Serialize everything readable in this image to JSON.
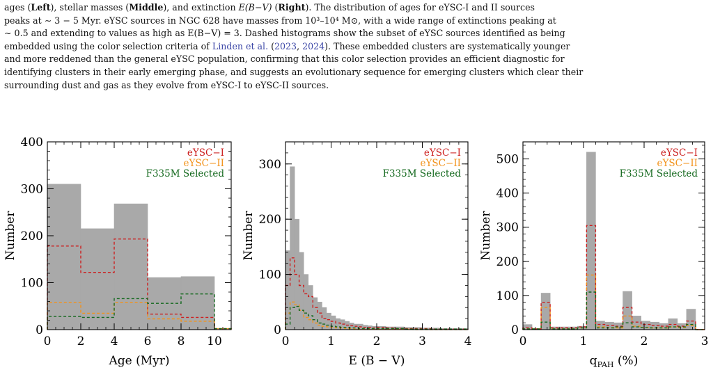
{
  "caption": {
    "line1": {
      "a": "ages (",
      "left": "Left",
      "b": "), stellar masses (",
      "middle": "Middle",
      "c": "), and extinction ",
      "ebv": "E(B−V)",
      "d": " (",
      "right": "Right",
      "e": "). The distribution of ages for eYSC-I and II sources"
    },
    "line2": "peaks at ∼ 3 − 5 Myr. eYSC sources in NGC 628 have masses from 10³–10⁴ M⊙, with a wide range of extinctions peaking at",
    "line3": "∼ 0.5 and extending to values as high as E(B−V) = 3. Dashed histograms show the subset of eYSC sources identified as being",
    "line4": {
      "a": "embedded using the color selection criteria of ",
      "cite_author": "Linden et al.",
      "b": " (",
      "cite_y1": "2023",
      "c": ", ",
      "cite_y2": "2024",
      "d": "). These embedded clusters are systematically younger"
    },
    "line5": "and more reddened than the general eYSC population, confirming that this color selection provides an efficient diagnostic for",
    "line6": "identifying clusters in their early emerging phase, and suggests an evolutionary sequence for emerging clusters which clear their",
    "line7": "surrounding dust and gas as they evolve from eYSC-I to eYSC-II sources."
  },
  "colors": {
    "all": "#a9a9a9",
    "eysc1": "#cc1f1f",
    "eysc2": "#f2921a",
    "f335m": "#14691e"
  },
  "chart_data": [
    {
      "type": "bar",
      "panel": "left",
      "xlabel": "Age (Myr)",
      "ylabel": "Number",
      "xlim": [
        0,
        11
      ],
      "ylim": [
        0,
        400
      ],
      "xticks": [
        0,
        2,
        4,
        6,
        8,
        10
      ],
      "yticks": [
        0,
        100,
        200,
        300,
        400
      ],
      "x_minor_step": 0.5,
      "y_minor_step": 20,
      "legend": [
        "eYSC−I",
        "eYSC−II",
        "F335M Selected"
      ],
      "legend_position": "top-right",
      "bin_edges": [
        0,
        2,
        4,
        6,
        8,
        10,
        11
      ],
      "series": [
        {
          "name": "",
          "style": "filled",
          "values": [
            310,
            215,
            268,
            111,
            113,
            0
          ]
        },
        {
          "name": "eYSC−I",
          "style": "dashed",
          "values": [
            178,
            122,
            193,
            33,
            26,
            2
          ]
        },
        {
          "name": "eYSC−II",
          "style": "dashed",
          "values": [
            58,
            35,
            58,
            23,
            18,
            2
          ]
        },
        {
          "name": "F335M Selected",
          "style": "dashed",
          "values": [
            28,
            26,
            66,
            56,
            76,
            2
          ]
        }
      ]
    },
    {
      "type": "bar",
      "panel": "middle",
      "xlabel": "E (B − V)",
      "ylabel": "Number",
      "xlim": [
        0,
        4
      ],
      "ylim": [
        0,
        340
      ],
      "xticks": [
        0,
        1,
        2,
        3,
        4
      ],
      "yticks": [
        0,
        100,
        200,
        300
      ],
      "x_minor_step": 0.2,
      "y_minor_step": 20,
      "legend": [
        "eYSC−I",
        "eYSC−II",
        "F335M Selected"
      ],
      "legend_position": "top-right",
      "bin_edges": [
        0,
        0.1,
        0.2,
        0.3,
        0.4,
        0.5,
        0.6,
        0.7,
        0.8,
        0.9,
        1.0,
        1.1,
        1.2,
        1.3,
        1.4,
        1.5,
        1.6,
        1.7,
        1.8,
        1.9,
        2.0,
        2.2,
        2.4,
        2.6,
        2.8,
        3.0,
        3.2,
        3.4,
        3.6,
        3.8,
        4.0
      ],
      "series": [
        {
          "name": "",
          "style": "filled",
          "values": [
            143,
            295,
            200,
            140,
            100,
            80,
            58,
            50,
            40,
            30,
            25,
            20,
            18,
            15,
            12,
            10,
            10,
            8,
            7,
            6,
            6,
            5,
            5,
            4,
            4,
            3,
            3,
            2,
            2,
            2
          ]
        },
        {
          "name": "eYSC−I",
          "style": "dashed",
          "values": [
            80,
            130,
            100,
            80,
            65,
            60,
            40,
            30,
            20,
            18,
            15,
            12,
            10,
            8,
            7,
            6,
            5,
            4,
            4,
            3,
            4,
            3,
            2,
            2,
            2,
            2,
            1,
            1,
            1,
            1
          ]
        },
        {
          "name": "eYSC−II",
          "style": "dashed",
          "values": [
            30,
            50,
            45,
            35,
            22,
            18,
            12,
            8,
            6,
            5,
            4,
            3,
            3,
            2,
            2,
            1,
            1,
            1,
            1,
            1,
            1,
            1,
            1,
            1,
            0,
            0,
            0,
            0,
            0,
            0
          ]
        },
        {
          "name": "F335M Selected",
          "style": "dashed",
          "values": [
            10,
            40,
            42,
            35,
            30,
            25,
            18,
            12,
            10,
            8,
            6,
            5,
            4,
            4,
            3,
            3,
            2,
            2,
            2,
            2,
            2,
            2,
            2,
            1,
            1,
            1,
            1,
            1,
            1,
            1
          ]
        }
      ]
    },
    {
      "type": "bar",
      "panel": "right",
      "xlabel": "q",
      "xlabel_sub": "PAH",
      "xlabel_unit": " (%)",
      "ylabel": "Number",
      "xlim": [
        0,
        3
      ],
      "ylim": [
        0,
        550
      ],
      "xticks": [
        0,
        1,
        2,
        3
      ],
      "yticks": [
        0,
        100,
        200,
        300,
        400,
        500
      ],
      "x_minor_step": 0.2,
      "y_minor_step": 20,
      "legend": [
        "eYSC−I",
        "eYSC−II",
        "F335M Selected"
      ],
      "legend_position": "top-right",
      "bin_edges": [
        0,
        0.15,
        0.3,
        0.45,
        0.6,
        0.75,
        0.9,
        1.05,
        1.2,
        1.35,
        1.5,
        1.65,
        1.8,
        1.95,
        2.1,
        2.25,
        2.4,
        2.55,
        2.7,
        2.85,
        3.0
      ],
      "series": [
        {
          "name": "",
          "style": "filled",
          "values": [
            15,
            3,
            107,
            8,
            8,
            8,
            10,
            520,
            25,
            22,
            20,
            112,
            40,
            25,
            22,
            18,
            32,
            18,
            60,
            0
          ]
        },
        {
          "name": "eYSC−I",
          "style": "dashed",
          "values": [
            5,
            2,
            80,
            5,
            5,
            5,
            8,
            305,
            15,
            12,
            10,
            65,
            22,
            15,
            12,
            10,
            15,
            10,
            25,
            0
          ]
        },
        {
          "name": "eYSC−II",
          "style": "dashed",
          "values": [
            2,
            2,
            65,
            2,
            2,
            2,
            5,
            160,
            8,
            6,
            5,
            40,
            10,
            6,
            5,
            5,
            8,
            6,
            12,
            0
          ]
        },
        {
          "name": "F335M Selected",
          "style": "dashed",
          "values": [
            2,
            2,
            22,
            2,
            2,
            2,
            5,
            110,
            5,
            5,
            8,
            20,
            8,
            6,
            5,
            5,
            8,
            8,
            15,
            0
          ]
        }
      ]
    }
  ]
}
